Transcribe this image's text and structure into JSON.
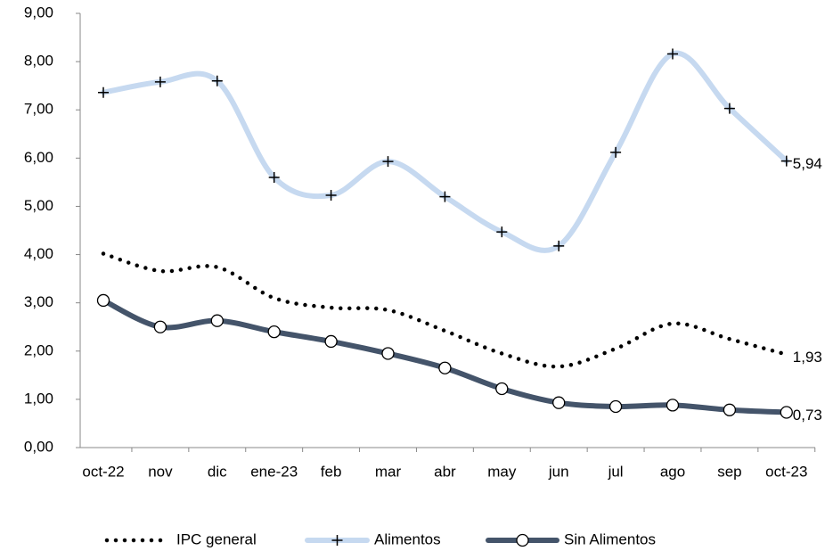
{
  "chart_data": {
    "type": "line",
    "categories": [
      "oct-22",
      "nov",
      "dic",
      "ene-23",
      "feb",
      "mar",
      "abr",
      "may",
      "jun",
      "jul",
      "ago",
      "sep",
      "oct-23"
    ],
    "ylim": [
      0,
      9
    ],
    "yticks": [
      {
        "value": 0,
        "label": "0,00"
      },
      {
        "value": 1,
        "label": "1,00"
      },
      {
        "value": 2,
        "label": "2,00"
      },
      {
        "value": 3,
        "label": "3,00"
      },
      {
        "value": 4,
        "label": "4,00"
      },
      {
        "value": 5,
        "label": "5,00"
      },
      {
        "value": 6,
        "label": "6,00"
      },
      {
        "value": 7,
        "label": "7,00"
      },
      {
        "value": 8,
        "label": "8,00"
      },
      {
        "value": 9,
        "label": "9,00"
      }
    ],
    "grid": false,
    "legend": "bottom",
    "series": [
      {
        "name": "IPC general",
        "color": "#000000",
        "style": "dotted",
        "values": [
          4.02,
          3.66,
          3.74,
          3.1,
          2.9,
          2.85,
          2.42,
          1.95,
          1.68,
          2.05,
          2.57,
          2.25,
          1.93
        ],
        "value_labels": [
          null,
          null,
          null,
          null,
          null,
          null,
          null,
          null,
          null,
          null,
          null,
          null,
          "1,93"
        ]
      },
      {
        "name": "Alimentos",
        "color": "#c6d9f0",
        "marker": "plus",
        "values": [
          7.36,
          7.58,
          7.6,
          5.6,
          5.23,
          5.93,
          5.2,
          4.47,
          4.18,
          6.12,
          8.16,
          7.03,
          5.94
        ],
        "value_labels": [
          null,
          null,
          null,
          null,
          null,
          null,
          null,
          null,
          null,
          null,
          null,
          null,
          "5,94"
        ]
      },
      {
        "name": "Sin Alimentos",
        "color": "#44546a",
        "marker": "circle",
        "values": [
          3.05,
          2.5,
          2.63,
          2.4,
          2.2,
          1.95,
          1.65,
          1.22,
          0.93,
          0.85,
          0.88,
          0.78,
          0.73
        ],
        "value_labels": [
          null,
          null,
          null,
          null,
          null,
          null,
          null,
          null,
          null,
          null,
          null,
          null,
          "0,73"
        ]
      }
    ]
  }
}
